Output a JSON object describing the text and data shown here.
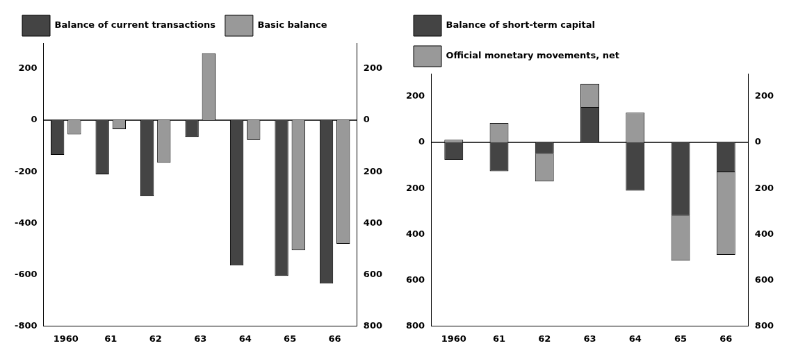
{
  "chart_data": [
    {
      "type": "bar",
      "categories": [
        "1960",
        "61",
        "62",
        "63",
        "64",
        "65",
        "66"
      ],
      "series": [
        {
          "name": "Balance of current transactions",
          "color": "#444444",
          "values": [
            -135,
            -210,
            -295,
            -65,
            -565,
            -605,
            -635
          ]
        },
        {
          "name": "Basic balance",
          "color": "#999999",
          "values": [
            -55,
            -35,
            -165,
            260,
            -75,
            -505,
            -480
          ]
        }
      ],
      "ylim": [
        -800,
        300
      ],
      "yticks": [
        -800,
        -600,
        -400,
        -200,
        0,
        200
      ],
      "y2lim": [
        -800,
        300
      ],
      "y2ticks": [
        {
          "value": -800,
          "label": "800"
        },
        {
          "value": -600,
          "label": "600"
        },
        {
          "value": -400,
          "label": "400"
        },
        {
          "value": -200,
          "label": "200"
        },
        {
          "value": 0,
          "label": "0"
        },
        {
          "value": 200,
          "label": "200"
        }
      ],
      "ref_lines": [
        {
          "axis": "y",
          "value": 0
        }
      ],
      "grid": false,
      "legend": "top left"
    },
    {
      "type": "bar",
      "stacked": true,
      "categories": [
        "1960",
        "61",
        "62",
        "63",
        "64",
        "65",
        "66"
      ],
      "series": [
        {
          "name": "Balance of short-term capital",
          "color": "#444444",
          "values": [
            -75,
            -125,
            -50,
            155,
            -210,
            -320,
            -130
          ]
        },
        {
          "name": "Official monetary movements, net",
          "color": "#999999",
          "values": [
            12,
            85,
            -120,
            100,
            130,
            -195,
            -360
          ]
        }
      ],
      "ylim": [
        -800,
        300
      ],
      "yticks": [
        {
          "value": -800,
          "label": "800"
        },
        {
          "value": -600,
          "label": "600"
        },
        {
          "value": -400,
          "label": "400"
        },
        {
          "value": -200,
          "label": "200"
        },
        0,
        200
      ],
      "y2lim": [
        -800,
        300
      ],
      "y2ticks": [
        {
          "value": -800,
          "label": "800"
        },
        {
          "value": -600,
          "label": "600"
        },
        {
          "value": -400,
          "label": "400"
        },
        {
          "value": -200,
          "label": "200"
        },
        {
          "value": 0,
          "label": "0"
        },
        {
          "value": 200,
          "label": "200"
        }
      ],
      "ref_lines": [
        {
          "axis": "y",
          "value": 0
        }
      ],
      "grid": false,
      "legend": "top left"
    }
  ]
}
